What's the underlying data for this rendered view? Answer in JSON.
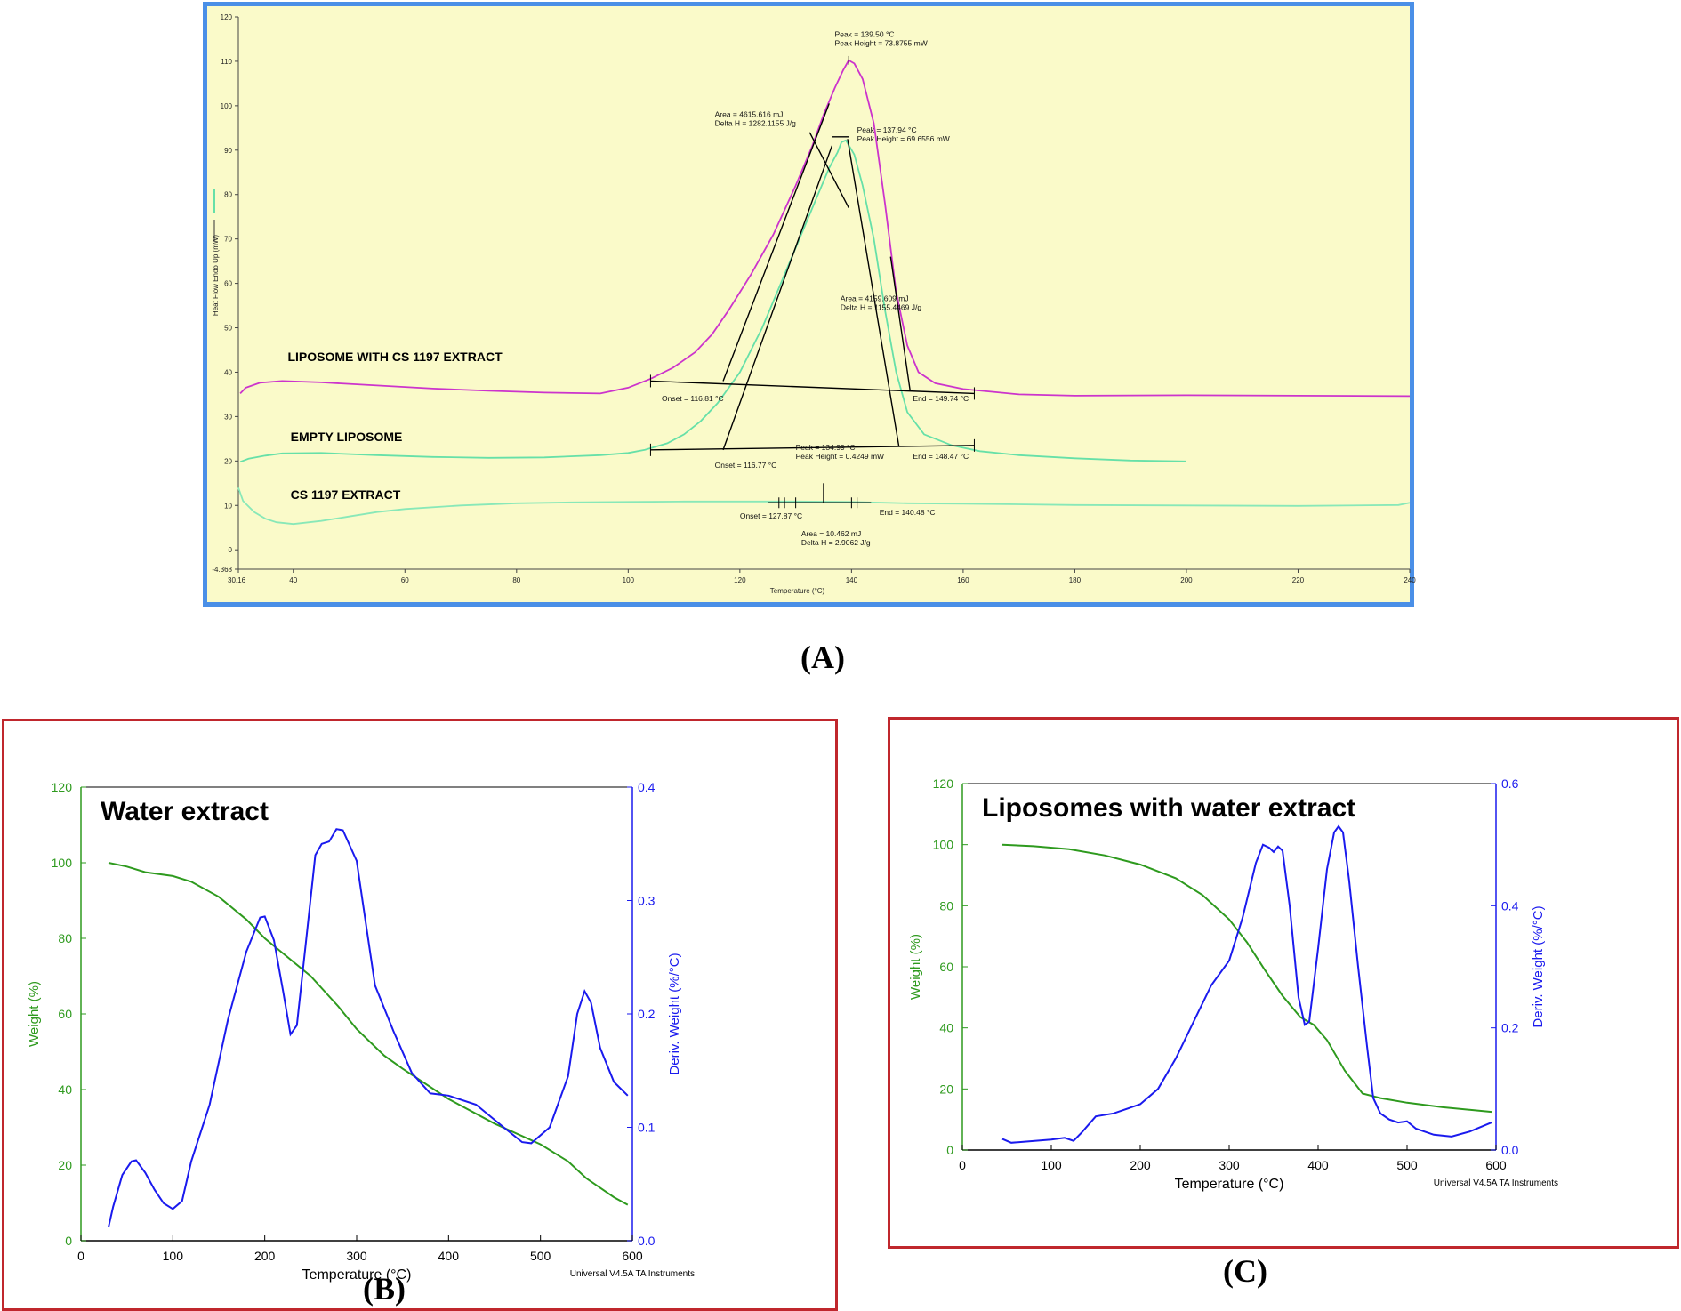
{
  "captions": {
    "a": "(A)",
    "b": "(B)",
    "c": "(C)"
  },
  "colors": {
    "panel_a_border": "#4a8fe7",
    "panel_a_bg": "#fafac9",
    "panel_bc_border": "#c0272d",
    "magenta": "#cc33cc",
    "mint": "#66e0a8",
    "light_mint": "#88e8b8",
    "weight_green": "#2e9a1e",
    "deriv_blue": "#1a1aee"
  },
  "chart_data": [
    {
      "id": "A",
      "type": "line",
      "xlabel": "Temperature (°C)",
      "ylabel": "Heat Flow Endo Up (mW)",
      "xlim": [
        30.16,
        240
      ],
      "ylim": [
        -4.368,
        120
      ],
      "x_ticks": [
        "30.16",
        "40",
        "60",
        "80",
        "100",
        "120",
        "140",
        "160",
        "180",
        "200",
        "220",
        "240"
      ],
      "y_ticks": [
        "-4.368",
        "0",
        "10",
        "20",
        "30",
        "40",
        "50",
        "60",
        "70",
        "80",
        "90",
        "100",
        "110",
        "120"
      ],
      "series": [
        {
          "name": "LIPOSOME WITH CS 1197 EXTRACT",
          "color": "#cc33cc",
          "x": [
            30.5,
            31.5,
            34,
            38,
            45,
            55,
            65,
            75,
            85,
            95,
            100,
            104,
            108,
            112,
            115,
            118,
            122,
            126,
            130,
            133,
            135,
            137,
            138.5,
            139.5,
            140.5,
            142,
            144,
            146,
            148,
            150,
            152,
            155,
            160,
            170,
            180,
            200,
            220,
            240
          ],
          "y": [
            35.2,
            36.5,
            37.6,
            38.0,
            37.7,
            37.0,
            36.3,
            35.8,
            35.4,
            35.2,
            36.5,
            38.5,
            41.0,
            44.5,
            48.5,
            54,
            62,
            71,
            82,
            91,
            98,
            104,
            108,
            110.2,
            109.5,
            106,
            96,
            78,
            58,
            46,
            40,
            37.5,
            36.2,
            35.0,
            34.7,
            34.8,
            34.7,
            34.6
          ]
        },
        {
          "name": "EMPTY LIPOSOME",
          "color": "#66e0a8",
          "x": [
            30.5,
            32,
            35,
            38,
            45,
            55,
            65,
            75,
            85,
            95,
            100,
            103,
            107,
            110,
            113,
            116,
            120,
            124,
            128,
            131,
            134,
            136,
            137.5,
            138.2,
            139,
            140.5,
            142,
            144,
            146,
            148,
            150,
            153,
            158,
            163,
            170,
            180,
            190,
            200
          ],
          "y": [
            19.8,
            20.5,
            21.2,
            21.7,
            21.8,
            21.3,
            20.9,
            20.7,
            20.8,
            21.3,
            21.8,
            22.5,
            24,
            26,
            29,
            33,
            40,
            50,
            62,
            71,
            80,
            86,
            89.5,
            91.8,
            92.2,
            89,
            82,
            70,
            54,
            40,
            31,
            26,
            23.5,
            22.2,
            21.3,
            20.6,
            20.1,
            19.9
          ]
        },
        {
          "name": "CS 1197 EXTRACT",
          "color": "#88e8b8",
          "x": [
            30.16,
            31,
            33,
            35,
            37,
            40,
            45,
            50,
            55,
            60,
            70,
            80,
            90,
            100,
            110,
            120,
            130,
            140,
            150,
            160,
            180,
            200,
            220,
            238,
            240
          ],
          "y": [
            14,
            11,
            8.5,
            7,
            6.2,
            5.8,
            6.5,
            7.5,
            8.5,
            9.2,
            10,
            10.5,
            10.7,
            10.8,
            10.9,
            10.9,
            10.9,
            10.8,
            10.5,
            10.4,
            10.1,
            10.0,
            9.9,
            10.1,
            10.6
          ]
        }
      ],
      "annotations": [
        {
          "lines": [
            "Peak = 139.50 °C",
            "Peak Height = 73.8755 mW"
          ],
          "x": 137,
          "y": 115.5
        },
        {
          "lines": [
            "Area = 4615.616 mJ",
            "Delta H = 1282.1155 J/g"
          ],
          "x": 115.5,
          "y": 97.5
        },
        {
          "lines": [
            "Peak = 137.94 °C",
            "Peak Height = 69.6556 mW"
          ],
          "x": 141,
          "y": 94
        },
        {
          "lines": [
            "Area = 4159.609 mJ",
            "Delta H = 1155.4469 J/g"
          ],
          "x": 138,
          "y": 56
        },
        {
          "lines": [
            "Onset = 116.81 °C"
          ],
          "x": 106,
          "y": 33.5
        },
        {
          "lines": [
            "End = 149.74 °C"
          ],
          "x": 151,
          "y": 33.5
        },
        {
          "lines": [
            "Onset = 116.77 °C"
          ],
          "x": 115.5,
          "y": 18.5
        },
        {
          "lines": [
            "End = 148.47 °C"
          ],
          "x": 151,
          "y": 20.5
        },
        {
          "lines": [
            "Peak = 134.99 °C",
            "Peak Height = 0.4249 mW"
          ],
          "x": 130,
          "y": 22.5
        },
        {
          "lines": [
            "Onset = 127.87 °C"
          ],
          "x": 120,
          "y": 7
        },
        {
          "lines": [
            "End = 140.48 °C"
          ],
          "x": 145,
          "y": 7.8
        },
        {
          "lines": [
            "Area = 10.462 mJ",
            "Delta H = 2.9062 J/g"
          ],
          "x": 131,
          "y": 3
        }
      ],
      "labels": [
        {
          "text": "LIPOSOME WITH CS 1197 EXTRACT",
          "x": 39,
          "y": 42.5
        },
        {
          "text": "EMPTY LIPOSOME",
          "x": 39.5,
          "y": 24.5
        },
        {
          "text": "CS 1197 EXTRACT",
          "x": 39.5,
          "y": 11.5
        }
      ]
    },
    {
      "id": "B",
      "type": "line",
      "title": "Water extract",
      "xlabel": "Temperature (°C)",
      "ylabel": "Weight (%)",
      "y2label": "Deriv. Weight (%/°C)",
      "credit": "Universal V4.5A TA Instruments",
      "xlim": [
        0,
        600
      ],
      "ylim": [
        0,
        120
      ],
      "y2lim": [
        0,
        0.4
      ],
      "x_ticks": [
        0,
        100,
        200,
        300,
        400,
        500,
        600
      ],
      "y_ticks": [
        0,
        20,
        40,
        60,
        80,
        100,
        120
      ],
      "y2_ticks": [
        "0.0",
        "0.1",
        "0.2",
        "0.3",
        "0.4"
      ],
      "series": [
        {
          "name": "Weight (%)",
          "axis": "left",
          "color": "#2e9a1e",
          "x": [
            30,
            50,
            70,
            100,
            120,
            150,
            180,
            200,
            220,
            250,
            280,
            300,
            330,
            350,
            400,
            450,
            500,
            530,
            550,
            580,
            595
          ],
          "y": [
            100,
            99,
            97.5,
            96.5,
            95,
            91,
            85,
            80,
            76,
            70,
            62,
            56,
            49,
            45.5,
            37.5,
            31,
            25.5,
            21,
            16.5,
            11.5,
            9.5
          ]
        },
        {
          "name": "Deriv. Weight (%/°C)",
          "axis": "right",
          "color": "#1a1aee",
          "x": [
            30,
            35,
            45,
            55,
            60,
            70,
            80,
            90,
            100,
            110,
            120,
            140,
            160,
            180,
            195,
            200,
            210,
            220,
            228,
            235,
            245,
            255,
            262,
            270,
            278,
            285,
            300,
            310,
            320,
            340,
            360,
            380,
            400,
            430,
            460,
            480,
            490,
            510,
            530,
            540,
            548,
            555,
            565,
            580,
            595
          ],
          "y": [
            0.012,
            0.03,
            0.058,
            0.07,
            0.071,
            0.06,
            0.045,
            0.033,
            0.028,
            0.035,
            0.07,
            0.12,
            0.195,
            0.255,
            0.285,
            0.286,
            0.265,
            0.22,
            0.182,
            0.19,
            0.265,
            0.34,
            0.35,
            0.352,
            0.363,
            0.362,
            0.335,
            0.28,
            0.225,
            0.185,
            0.148,
            0.13,
            0.128,
            0.12,
            0.1,
            0.087,
            0.086,
            0.1,
            0.145,
            0.2,
            0.22,
            0.21,
            0.17,
            0.14,
            0.128
          ]
        }
      ]
    },
    {
      "id": "C",
      "type": "line",
      "title": "Liposomes with water extract",
      "xlabel": "Temperature (°C)",
      "ylabel": "Weight (%)",
      "y2label": "Deriv. Weight (%/°C)",
      "credit": "Universal V4.5A TA Instruments",
      "xlim": [
        0,
        600
      ],
      "ylim": [
        0,
        120
      ],
      "y2lim": [
        0,
        0.6
      ],
      "x_ticks": [
        0,
        100,
        200,
        300,
        400,
        500,
        600
      ],
      "y_ticks": [
        0,
        20,
        40,
        60,
        80,
        100,
        120
      ],
      "y2_ticks": [
        "0.0",
        "0.2",
        "0.4",
        "0.6"
      ],
      "series": [
        {
          "name": "Weight (%)",
          "axis": "left",
          "color": "#2e9a1e",
          "x": [
            45,
            80,
            120,
            160,
            200,
            240,
            270,
            300,
            320,
            340,
            360,
            380,
            395,
            410,
            430,
            450,
            470,
            500,
            540,
            595
          ],
          "y": [
            100,
            99.5,
            98.5,
            96.5,
            93.5,
            89,
            83.5,
            75.5,
            68,
            59,
            50.5,
            43.5,
            41,
            36,
            26,
            18.5,
            17,
            15.5,
            14,
            12.5
          ]
        },
        {
          "name": "Deriv. Weight (%/°C)",
          "axis": "right",
          "color": "#1a1aee",
          "x": [
            45,
            55,
            100,
            115,
            125,
            135,
            150,
            170,
            200,
            220,
            240,
            260,
            280,
            300,
            315,
            330,
            338,
            345,
            350,
            355,
            360,
            368,
            378,
            385,
            390,
            400,
            410,
            418,
            423,
            428,
            435,
            445,
            455,
            462,
            470,
            480,
            490,
            500,
            510,
            530,
            550,
            570,
            595
          ],
          "y": [
            0.018,
            0.012,
            0.017,
            0.02,
            0.015,
            0.03,
            0.055,
            0.06,
            0.075,
            0.1,
            0.15,
            0.21,
            0.27,
            0.31,
            0.38,
            0.47,
            0.5,
            0.495,
            0.488,
            0.497,
            0.49,
            0.4,
            0.25,
            0.205,
            0.21,
            0.33,
            0.46,
            0.52,
            0.53,
            0.52,
            0.44,
            0.3,
            0.17,
            0.085,
            0.06,
            0.05,
            0.045,
            0.047,
            0.035,
            0.025,
            0.022,
            0.03,
            0.045
          ]
        }
      ]
    }
  ]
}
